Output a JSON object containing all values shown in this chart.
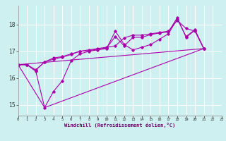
{
  "xlabel": "Windchill (Refroidissement éolien,°C)",
  "xlim": [
    0,
    23
  ],
  "ylim": [
    14.6,
    18.7
  ],
  "xticks": [
    0,
    1,
    2,
    3,
    4,
    5,
    6,
    7,
    8,
    9,
    10,
    11,
    12,
    13,
    14,
    15,
    16,
    17,
    18,
    19,
    20,
    21,
    22,
    23
  ],
  "yticks": [
    15,
    16,
    17,
    18
  ],
  "background_color": "#cff0f0",
  "grid_color": "#ffffff",
  "line_color": "#aa00aa",
  "line1_x": [
    0,
    1,
    2,
    3,
    4,
    5,
    6,
    7,
    8,
    9,
    10,
    11,
    12,
    13,
    14,
    15,
    16,
    17,
    18,
    19,
    20,
    21
  ],
  "line1_y": [
    16.5,
    16.5,
    16.3,
    16.6,
    16.75,
    16.8,
    16.9,
    17.0,
    17.05,
    17.1,
    17.15,
    17.2,
    17.5,
    17.6,
    17.6,
    17.65,
    17.7,
    17.75,
    18.15,
    17.85,
    17.75,
    17.1
  ],
  "line2_x": [
    0,
    1,
    2,
    3,
    4,
    5,
    6,
    7,
    8,
    9,
    10,
    11,
    12,
    13,
    14,
    15,
    16,
    17,
    18,
    19,
    20,
    21
  ],
  "line2_y": [
    16.5,
    16.5,
    16.25,
    14.9,
    15.5,
    15.9,
    16.65,
    16.9,
    17.0,
    17.05,
    17.1,
    17.75,
    17.25,
    17.05,
    17.15,
    17.25,
    17.45,
    17.65,
    18.2,
    17.55,
    17.8,
    17.1
  ],
  "line3_x": [
    0,
    21
  ],
  "line3_y": [
    16.5,
    17.1
  ],
  "line4_x": [
    0,
    1,
    2,
    3,
    4,
    5,
    6,
    7,
    8,
    9,
    10,
    11,
    12,
    13,
    14,
    15,
    16,
    17,
    18,
    19,
    20,
    21
  ],
  "line4_y": [
    16.5,
    16.5,
    16.3,
    16.6,
    16.7,
    16.78,
    16.88,
    17.0,
    17.02,
    17.08,
    17.12,
    17.55,
    17.2,
    17.52,
    17.52,
    17.62,
    17.68,
    17.72,
    18.25,
    17.52,
    17.78,
    17.1
  ]
}
